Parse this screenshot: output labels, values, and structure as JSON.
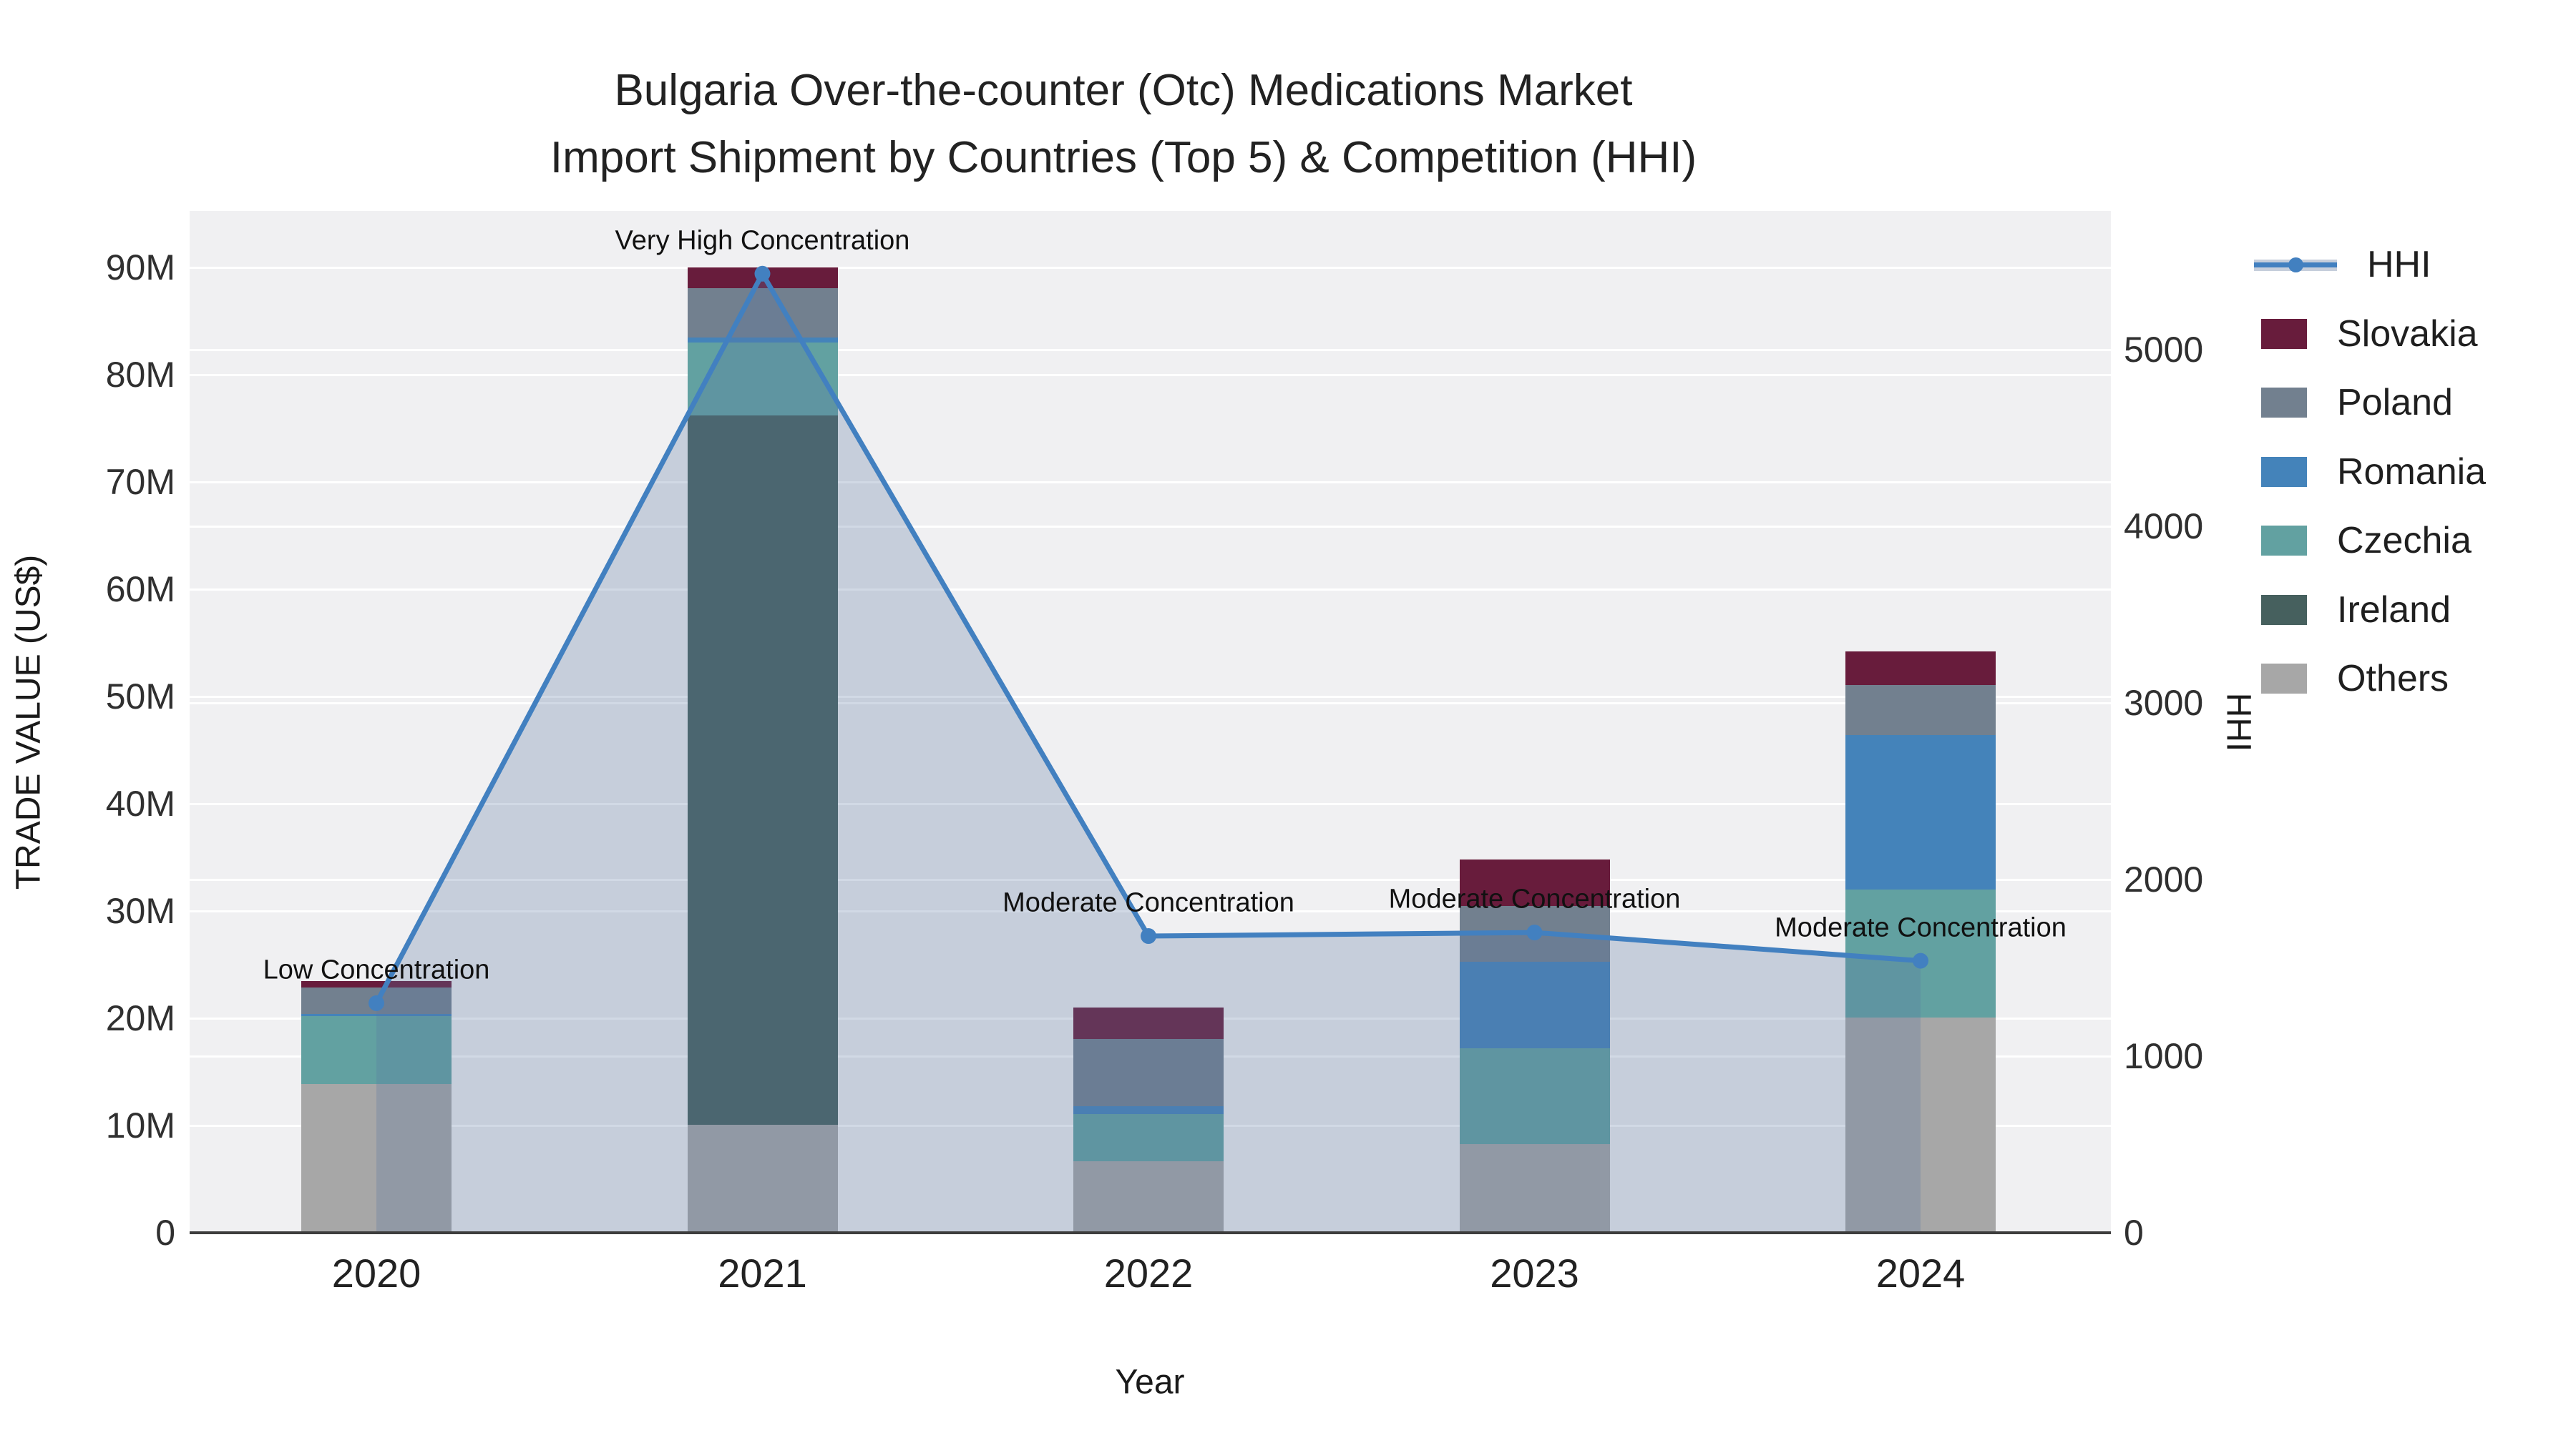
{
  "title": {
    "line1": "Bulgaria Over-the-counter (Otc) Medications Market",
    "line2": "Import Shipment by Countries (Top 5) & Competition (HHI)"
  },
  "axes": {
    "y_left": {
      "title": "TRADE VALUE (US$)",
      "ticks": [
        "0",
        "10M",
        "20M",
        "30M",
        "40M",
        "50M",
        "60M",
        "70M",
        "80M",
        "90M"
      ]
    },
    "y_right": {
      "title": "HHI",
      "ticks": [
        "0",
        "1000",
        "2000",
        "3000",
        "4000",
        "5000"
      ]
    },
    "x": {
      "title": "Year",
      "ticks": [
        "2020",
        "2021",
        "2022",
        "2023",
        "2024"
      ]
    }
  },
  "legend": {
    "items": [
      {
        "label": "HHI",
        "type": "line",
        "color": "#4280c0"
      },
      {
        "label": "Slovakia",
        "type": "box",
        "color": "#681c3c"
      },
      {
        "label": "Poland",
        "type": "box",
        "color": "#72808f"
      },
      {
        "label": "Romania",
        "type": "box",
        "color": "#4483ba"
      },
      {
        "label": "Czechia",
        "type": "box",
        "color": "#62a1a1"
      },
      {
        "label": "Ireland",
        "type": "box",
        "color": "#46605e"
      },
      {
        "label": "Others",
        "type": "box",
        "color": "#a7a7a7"
      }
    ]
  },
  "chart_data": {
    "type": "bar",
    "subtype": "stacked bars (left axis, US$ M) + HHI line (right axis)",
    "title": "Bulgaria Over-the-counter (Otc) Medications Market Import Shipment by Countries (Top 5) & Competition (HHI)",
    "xlabel": "Year",
    "ylabel_left": "TRADE VALUE (US$)",
    "ylabel_right": "HHI",
    "ylim_left_musd": [
      0,
      95
    ],
    "ylim_right_hhi": [
      0,
      5800
    ],
    "grid": true,
    "legend_position": "right",
    "categories": [
      "2020",
      "2021",
      "2022",
      "2023",
      "2024"
    ],
    "unit": "US$ millions",
    "stack_order_bottom_to_top": [
      "Others",
      "Ireland",
      "Czechia",
      "Romania",
      "Poland",
      "Slovakia"
    ],
    "series": [
      {
        "name": "Others",
        "color": "#a7a7a7",
        "values": [
          13.9,
          10.1,
          6.7,
          8.3,
          20.1
        ]
      },
      {
        "name": "Ireland",
        "color": "#46605e",
        "values": [
          0,
          66.1,
          0,
          0,
          0
        ]
      },
      {
        "name": "Czechia",
        "color": "#62a1a1",
        "values": [
          6.3,
          6.8,
          4.4,
          8.9,
          11.9
        ]
      },
      {
        "name": "Romania",
        "color": "#4483ba",
        "values": [
          0.2,
          0.5,
          0.7,
          8.1,
          14.4
        ]
      },
      {
        "name": "Poland",
        "color": "#72808f",
        "values": [
          2.5,
          4.6,
          6.3,
          5.2,
          4.7
        ]
      },
      {
        "name": "Slovakia",
        "color": "#681c3c",
        "values": [
          0.6,
          1.9,
          2.9,
          4.3,
          3.1
        ]
      }
    ],
    "bar_totals_musd": [
      23.5,
      90.0,
      21.0,
      34.8,
      54.2
    ],
    "hhi_series": {
      "name": "HHI",
      "color": "#4280c0",
      "fill": "rgba(90,120,160,0.28)",
      "values": [
        1300,
        5430,
        1680,
        1700,
        1540
      ]
    },
    "annotations": [
      {
        "x": "2020",
        "text": "Low Concentration"
      },
      {
        "x": "2021",
        "text": "Very High Concentration"
      },
      {
        "x": "2022",
        "text": "Moderate Concentration"
      },
      {
        "x": "2023",
        "text": "Moderate Concentration"
      },
      {
        "x": "2024",
        "text": "Moderate Concentration"
      }
    ]
  },
  "colors": {
    "plot_background": "#f0f0f2",
    "gridline": "#ffffff",
    "axis_line": "#3d3d3d",
    "hhi_line": "#4280c0",
    "hhi_fill": "rgba(90,120,160,0.28)"
  }
}
